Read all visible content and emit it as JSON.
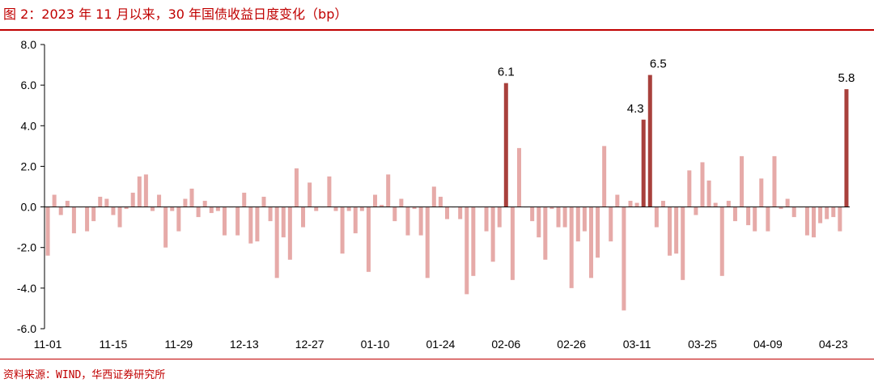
{
  "figure": {
    "title": "图 2：2023 年 11 月以来，30 年国债收益日度变化（bp）",
    "source": "资料来源：WIND，华西证券研究所"
  },
  "colors": {
    "accent": "#c00000",
    "bar_normal": "#e6aaa8",
    "bar_highlight": "#a8403c"
  },
  "chart_data": {
    "type": "bar",
    "title": "",
    "xlabel": "",
    "ylabel": "",
    "ylim": [
      -6,
      8
    ],
    "yticks": [
      -6,
      -4,
      -2,
      0,
      2,
      4,
      6,
      8
    ],
    "ytick_labels": [
      "-6.0",
      "-4.0",
      "-2.0",
      "0.0",
      "2.0",
      "4.0",
      "6.0",
      "8.0"
    ],
    "grid": false,
    "legend": "none",
    "x_tick_labels": [
      {
        "index": 0,
        "label": "11-01"
      },
      {
        "index": 10,
        "label": "11-15"
      },
      {
        "index": 20,
        "label": "11-29"
      },
      {
        "index": 30,
        "label": "12-13"
      },
      {
        "index": 40,
        "label": "12-27"
      },
      {
        "index": 50,
        "label": "01-10"
      },
      {
        "index": 60,
        "label": "01-24"
      },
      {
        "index": 70,
        "label": "02-06"
      },
      {
        "index": 80,
        "label": "02-26"
      },
      {
        "index": 90,
        "label": "03-11"
      },
      {
        "index": 100,
        "label": "03-25"
      },
      {
        "index": 110,
        "label": "04-09"
      },
      {
        "index": 120,
        "label": "04-23"
      }
    ],
    "values": [
      -2.4,
      0.6,
      -0.4,
      0.3,
      -1.3,
      0.0,
      -1.2,
      -0.7,
      0.5,
      0.4,
      -0.4,
      -1.0,
      -0.1,
      0.7,
      1.5,
      1.6,
      -0.2,
      0.6,
      -2.0,
      -0.2,
      -1.2,
      0.4,
      0.9,
      -0.5,
      0.3,
      -0.3,
      -0.2,
      -1.4,
      0.0,
      -1.4,
      0.7,
      -1.8,
      -1.7,
      0.5,
      -0.7,
      -3.5,
      -1.5,
      -2.6,
      1.9,
      -1.0,
      1.2,
      -0.2,
      0.0,
      1.5,
      -0.2,
      -2.3,
      -0.2,
      -1.3,
      -0.2,
      -3.2,
      0.6,
      0.1,
      1.6,
      -0.7,
      0.4,
      -1.4,
      -0.1,
      -1.4,
      -3.5,
      1.0,
      0.5,
      -0.6,
      0.0,
      -0.6,
      -4.3,
      -3.4,
      0.0,
      -1.2,
      -2.7,
      -1.0,
      6.1,
      -3.6,
      2.9,
      0.0,
      -0.7,
      -1.5,
      -2.6,
      -0.1,
      -1.0,
      -1.0,
      -4.0,
      -1.7,
      -1.2,
      -3.5,
      -2.5,
      3.0,
      -1.7,
      0.6,
      -5.1,
      0.3,
      0.2,
      4.3,
      6.5,
      -1.0,
      0.3,
      -2.4,
      -2.3,
      -3.6,
      1.8,
      -0.4,
      2.2,
      1.3,
      0.2,
      -3.4,
      0.3,
      -0.7,
      2.5,
      -0.9,
      -1.2,
      1.4,
      -1.2,
      2.5,
      -0.1,
      0.4,
      -0.5,
      0.0,
      -1.4,
      -1.5,
      -0.8,
      -0.6,
      -0.5,
      -1.2,
      5.8
    ],
    "highlighted": [
      {
        "index": 70,
        "value": 6.1,
        "label": "6.1"
      },
      {
        "index": 91,
        "value": 4.3,
        "label": "4.3"
      },
      {
        "index": 92,
        "value": 6.5,
        "label": "6.5"
      },
      {
        "index": 122,
        "value": 5.8,
        "label": "5.8"
      }
    ]
  }
}
